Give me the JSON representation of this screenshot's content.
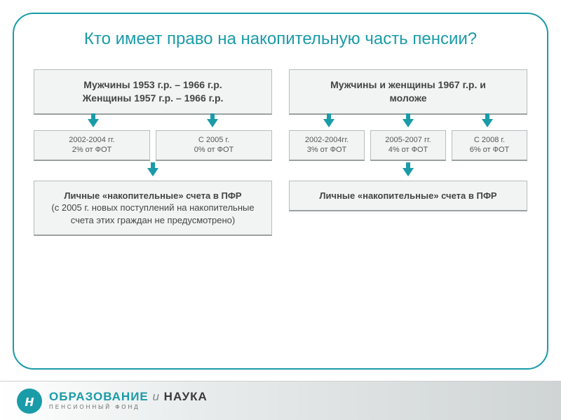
{
  "title": "Кто имеет право на накопительную часть пенсии?",
  "colors": {
    "accent": "#1a9ba8",
    "box_bg": "#f2f4f4",
    "box_border": "#b8bcbc",
    "box_shadow": "#9aa0a0",
    "text_dark": "#444444",
    "text_mid": "#555555"
  },
  "left": {
    "header_line1": "Мужчины 1953 г.р. – 1966 г.р.",
    "header_line2": "Женщины 1957 г.р. – 1966 г.р.",
    "sub": [
      {
        "line1": "2002-2004 гг.",
        "line2": "2% от ФОТ"
      },
      {
        "line1": "С 2005 г.",
        "line2": "0% от ФОТ"
      }
    ],
    "result_bold": "Личные «накопительные» счета в ПФР",
    "result_note": "(с 2005 г. новых поступлений на накопительные счета этих граждан не предусмотрено)"
  },
  "right": {
    "header_line1": "Мужчины и женщины 1967 г.р. и",
    "header_line2": "моложе",
    "sub": [
      {
        "line1": "2002-2004гг.",
        "line2": "3% от ФОТ"
      },
      {
        "line1": "2005-2007 гг.",
        "line2": "4% от ФОТ"
      },
      {
        "line1": "С 2008 г.",
        "line2": "6% от ФОТ"
      }
    ],
    "result_bold": "Личные «накопительные» счета в ПФР"
  },
  "footer": {
    "logo_glyph": "н",
    "brand_1": "ОБРАЗОВАНИЕ",
    "brand_amp": " и ",
    "brand_2": "НАУКА",
    "subtitle": "ПЕНСИОННЫЙ ФОНД"
  }
}
